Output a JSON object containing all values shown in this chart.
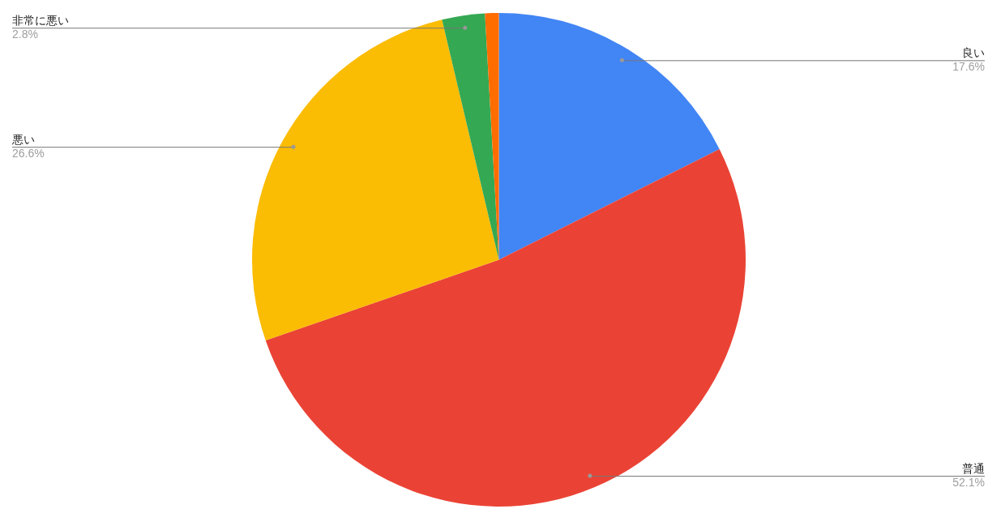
{
  "chart_data": {
    "type": "pie",
    "categories": [
      "良い",
      "普通",
      "悪い",
      "非常に悪い",
      null
    ],
    "values": [
      17.6,
      52.1,
      26.6,
      2.8,
      0.9
    ],
    "colors": [
      "#4285f4",
      "#ea4335",
      "#fbbc04",
      "#34a853",
      "#ff6d01"
    ],
    "value_labels": [
      "17.6%",
      "52.1%",
      "26.6%",
      "2.8%",
      null
    ],
    "legend": false
  }
}
